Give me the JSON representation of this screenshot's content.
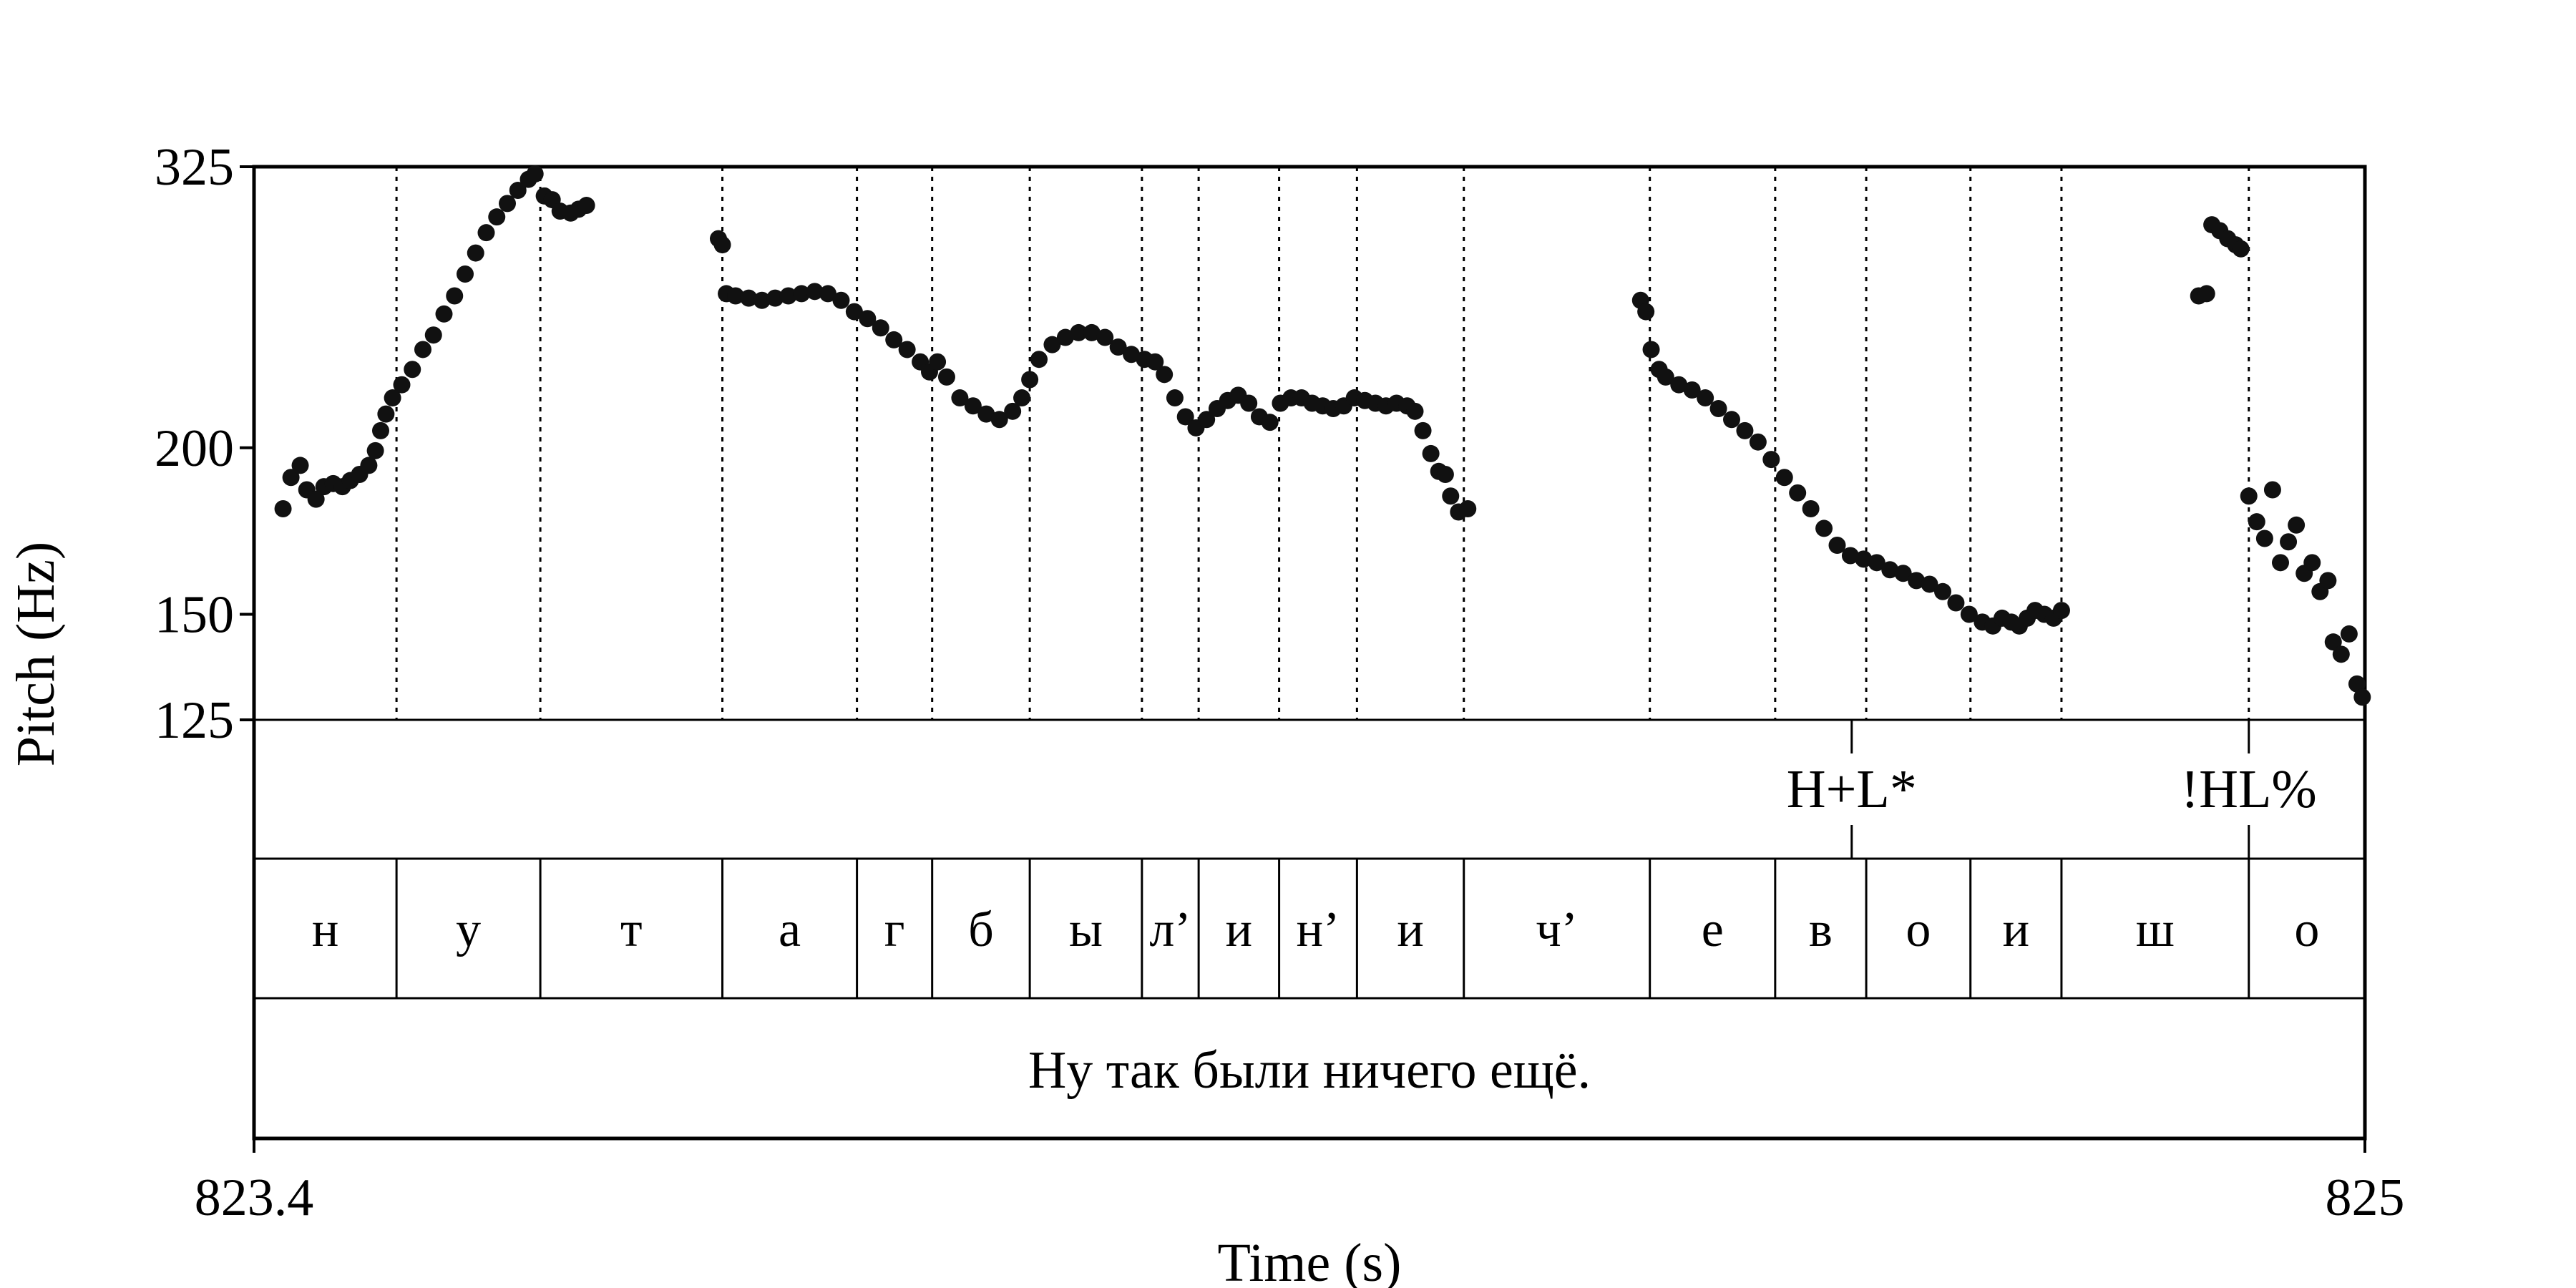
{
  "chart_data": {
    "type": "scatter",
    "xlabel": "Time (s)",
    "ylabel": "Pitch (Hz)",
    "xlim": [
      823.4,
      825
    ],
    "ylim": [
      125,
      325
    ],
    "y_scale": "log",
    "x_tick_labels": [
      "823.4",
      "825"
    ],
    "y_tick_labels": [
      "325",
      "200",
      "150",
      "125"
    ],
    "y_ticks": [
      325,
      200,
      150,
      125
    ],
    "grid": false,
    "tiers": {
      "tones": [
        {
          "label": "H+L*",
          "time": 824.611
        },
        {
          "label": "!HL%",
          "time": 824.912
        }
      ],
      "segments": [
        {
          "label": "н",
          "start": 823.4,
          "end": 823.508
        },
        {
          "label": "у",
          "start": 823.508,
          "end": 823.617
        },
        {
          "label": "т",
          "start": 823.617,
          "end": 823.755
        },
        {
          "label": "а",
          "start": 823.755,
          "end": 823.857
        },
        {
          "label": "г",
          "start": 823.857,
          "end": 823.914
        },
        {
          "label": "б",
          "start": 823.914,
          "end": 823.988
        },
        {
          "label": "ы",
          "start": 823.988,
          "end": 824.073
        },
        {
          "label": "л’",
          "start": 824.073,
          "end": 824.116
        },
        {
          "label": "и",
          "start": 824.116,
          "end": 824.177
        },
        {
          "label": "н’",
          "start": 824.177,
          "end": 824.236
        },
        {
          "label": "и",
          "start": 824.236,
          "end": 824.317
        },
        {
          "label": "ч’",
          "start": 824.317,
          "end": 824.458
        },
        {
          "label": "е",
          "start": 824.458,
          "end": 824.553
        },
        {
          "label": "в",
          "start": 824.553,
          "end": 824.622
        },
        {
          "label": "о",
          "start": 824.622,
          "end": 824.701
        },
        {
          "label": "и",
          "start": 824.701,
          "end": 824.77
        },
        {
          "label": "ш",
          "start": 824.77,
          "end": 824.912
        },
        {
          "label": "о",
          "start": 824.912,
          "end": 825.0
        }
      ],
      "sentence": "Ну так были ничего ещё."
    },
    "pitch_contour": [
      [
        823.422,
        180
      ],
      [
        823.428,
        190
      ],
      [
        823.435,
        194
      ],
      [
        823.44,
        186
      ],
      [
        823.447,
        183
      ],
      [
        823.453,
        187
      ],
      [
        823.46,
        188
      ],
      [
        823.467,
        187
      ],
      [
        823.473,
        189
      ],
      [
        823.48,
        191
      ],
      [
        823.487,
        194
      ],
      [
        823.492,
        199
      ],
      [
        823.496,
        206
      ],
      [
        823.5,
        212
      ],
      [
        823.505,
        218
      ],
      [
        823.512,
        223
      ],
      [
        823.52,
        229
      ],
      [
        823.528,
        237
      ],
      [
        823.536,
        243
      ],
      [
        823.544,
        252
      ],
      [
        823.552,
        260
      ],
      [
        823.56,
        270
      ],
      [
        823.568,
        280
      ],
      [
        823.576,
        290
      ],
      [
        823.584,
        298
      ],
      [
        823.592,
        305
      ],
      [
        823.6,
        312
      ],
      [
        823.608,
        318
      ],
      [
        823.613,
        321
      ],
      [
        823.62,
        309
      ],
      [
        823.626,
        307
      ],
      [
        823.632,
        301
      ],
      [
        823.64,
        300
      ],
      [
        823.646,
        302
      ],
      [
        823.652,
        304
      ],
      [
        823.752,
        287
      ],
      [
        823.755,
        284
      ],
      [
        823.758,
        261
      ],
      [
        823.765,
        260
      ],
      [
        823.775,
        259
      ],
      [
        823.785,
        258
      ],
      [
        823.795,
        259
      ],
      [
        823.805,
        260
      ],
      [
        823.815,
        261
      ],
      [
        823.825,
        262
      ],
      [
        823.835,
        261
      ],
      [
        823.845,
        258
      ],
      [
        823.855,
        253
      ],
      [
        823.865,
        250
      ],
      [
        823.875,
        246
      ],
      [
        823.885,
        241
      ],
      [
        823.895,
        237
      ],
      [
        823.905,
        232
      ],
      [
        823.912,
        228
      ],
      [
        823.918,
        232
      ],
      [
        823.925,
        226
      ],
      [
        823.935,
        218
      ],
      [
        823.945,
        215
      ],
      [
        823.955,
        212
      ],
      [
        823.965,
        210
      ],
      [
        823.975,
        213
      ],
      [
        823.982,
        218
      ],
      [
        823.988,
        225
      ],
      [
        823.995,
        233
      ],
      [
        824.005,
        239
      ],
      [
        824.015,
        242
      ],
      [
        824.025,
        244
      ],
      [
        824.035,
        244
      ],
      [
        824.045,
        242
      ],
      [
        824.055,
        238
      ],
      [
        824.065,
        235
      ],
      [
        824.075,
        233
      ],
      [
        824.083,
        232
      ],
      [
        824.09,
        227
      ],
      [
        824.098,
        218
      ],
      [
        824.106,
        211
      ],
      [
        824.114,
        207
      ],
      [
        824.122,
        210
      ],
      [
        824.13,
        214
      ],
      [
        824.138,
        217
      ],
      [
        824.146,
        219
      ],
      [
        824.154,
        216
      ],
      [
        824.162,
        211
      ],
      [
        824.17,
        209
      ],
      [
        824.178,
        216
      ],
      [
        824.186,
        218
      ],
      [
        824.194,
        218
      ],
      [
        824.202,
        216
      ],
      [
        824.21,
        215
      ],
      [
        824.218,
        214
      ],
      [
        824.226,
        215
      ],
      [
        824.234,
        218
      ],
      [
        824.242,
        217
      ],
      [
        824.25,
        216
      ],
      [
        824.258,
        215
      ],
      [
        824.266,
        216
      ],
      [
        824.274,
        215
      ],
      [
        824.28,
        213
      ],
      [
        824.286,
        206
      ],
      [
        824.292,
        198
      ],
      [
        824.298,
        192
      ],
      [
        824.303,
        191
      ],
      [
        824.307,
        184
      ],
      [
        824.313,
        179
      ],
      [
        824.32,
        180
      ],
      [
        824.451,
        258
      ],
      [
        824.455,
        253
      ],
      [
        824.459,
        237
      ],
      [
        824.465,
        229
      ],
      [
        824.47,
        226
      ],
      [
        824.48,
        223
      ],
      [
        824.49,
        221
      ],
      [
        824.5,
        218
      ],
      [
        824.51,
        214
      ],
      [
        824.52,
        210
      ],
      [
        824.53,
        206
      ],
      [
        824.54,
        202
      ],
      [
        824.55,
        196
      ],
      [
        824.56,
        190
      ],
      [
        824.57,
        185
      ],
      [
        824.58,
        180
      ],
      [
        824.59,
        174
      ],
      [
        824.6,
        169
      ],
      [
        824.61,
        166
      ],
      [
        824.62,
        165
      ],
      [
        824.63,
        164
      ],
      [
        824.64,
        162
      ],
      [
        824.65,
        161
      ],
      [
        824.66,
        159
      ],
      [
        824.67,
        158
      ],
      [
        824.68,
        156
      ],
      [
        824.69,
        153
      ],
      [
        824.7,
        150
      ],
      [
        824.71,
        148
      ],
      [
        824.718,
        147
      ],
      [
        824.725,
        149
      ],
      [
        824.732,
        148
      ],
      [
        824.738,
        147
      ],
      [
        824.744,
        149
      ],
      [
        824.75,
        151
      ],
      [
        824.757,
        150
      ],
      [
        824.764,
        149
      ],
      [
        824.77,
        151
      ],
      [
        824.874,
        260
      ],
      [
        824.88,
        261
      ],
      [
        824.884,
        294
      ],
      [
        824.89,
        291
      ],
      [
        824.896,
        287
      ],
      [
        824.902,
        284
      ],
      [
        824.906,
        282
      ],
      [
        824.912,
        184
      ],
      [
        824.918,
        176
      ],
      [
        824.924,
        171
      ],
      [
        824.93,
        186
      ],
      [
        824.936,
        164
      ],
      [
        824.942,
        170
      ],
      [
        824.948,
        175
      ],
      [
        824.954,
        161
      ],
      [
        824.96,
        164
      ],
      [
        824.966,
        156
      ],
      [
        824.972,
        159
      ],
      [
        824.976,
        143
      ],
      [
        824.982,
        140
      ],
      [
        824.988,
        145
      ],
      [
        824.994,
        133
      ],
      [
        824.998,
        130
      ]
    ]
  }
}
